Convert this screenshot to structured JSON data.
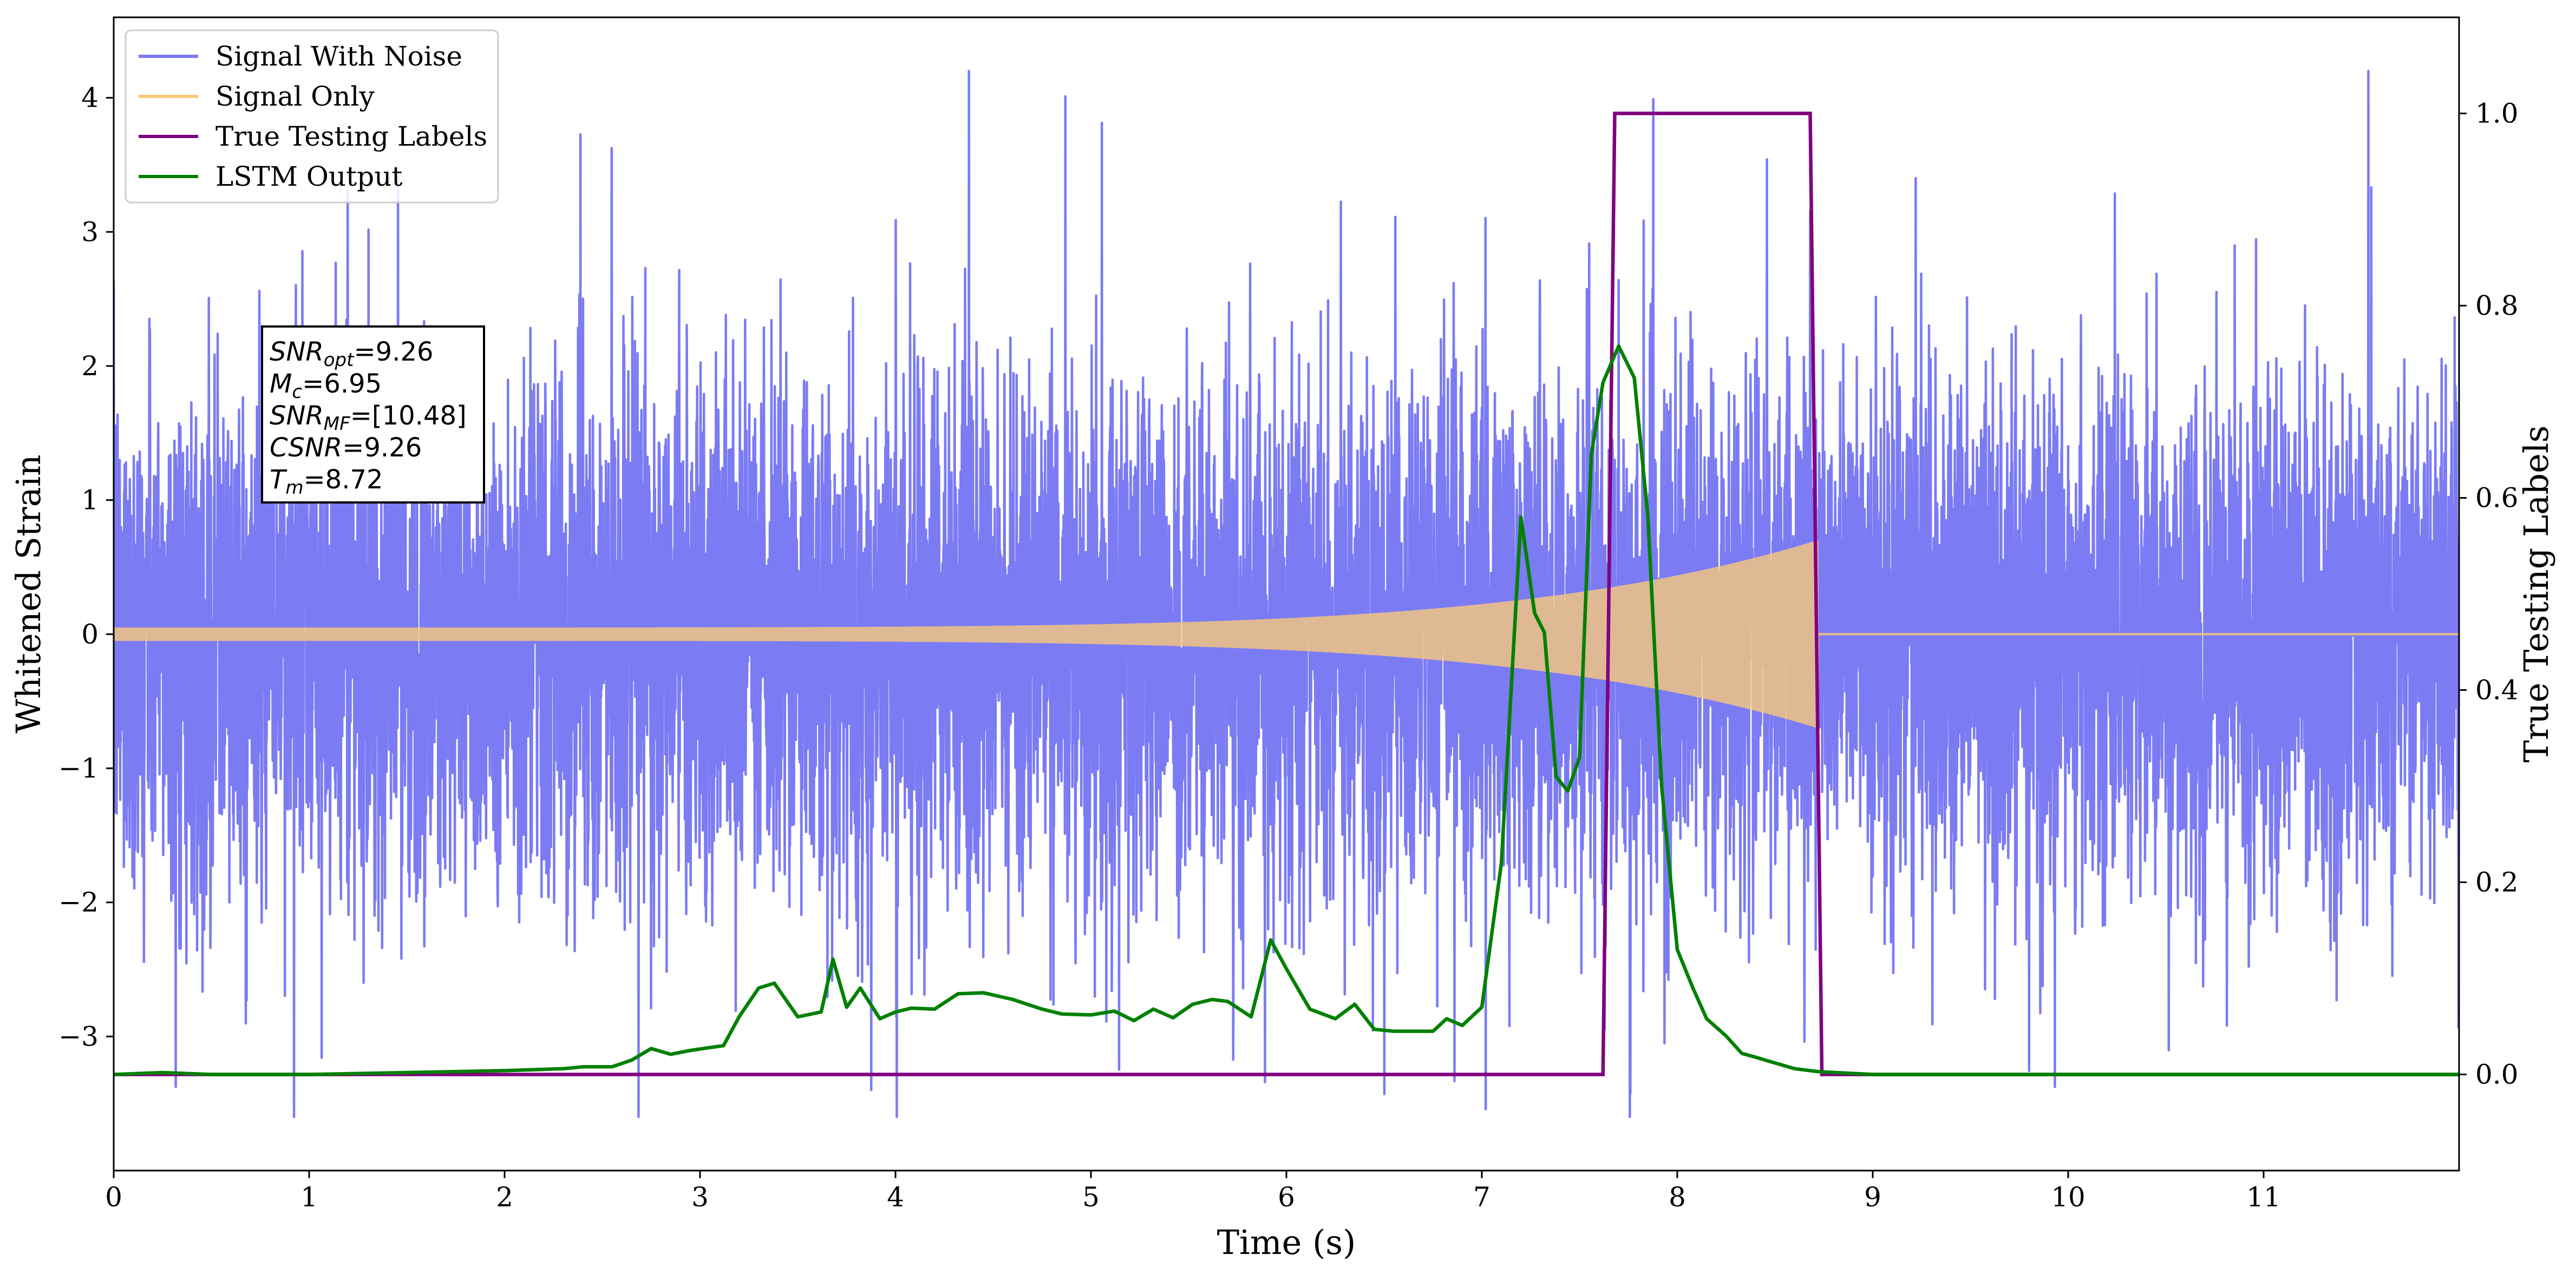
{
  "chart_data": {
    "type": "line",
    "xlabel": "Time (s)",
    "ylabel_left": "Whitened Strain",
    "ylabel_right": "True Testing Labels",
    "xlim": [
      0,
      12
    ],
    "ylim_left": [
      -4,
      4.6
    ],
    "ylim_right": [
      -0.1,
      1.1
    ],
    "xticks": [
      0,
      1,
      2,
      3,
      4,
      5,
      6,
      7,
      8,
      9,
      10,
      11
    ],
    "yticks_left": [
      -3,
      -2,
      -1,
      0,
      1,
      2,
      3,
      4
    ],
    "yticks_right": [
      0.0,
      0.2,
      0.4,
      0.6,
      0.8,
      1.0
    ],
    "grid": false,
    "legend_position": "upper-left",
    "series": [
      {
        "name": "Signal With Noise",
        "axis": "left",
        "color": "#7b7bf4",
        "kind": "noise",
        "description_values": {
          "typical_std": 0.95,
          "min": -3.6,
          "max": 4.2
        }
      },
      {
        "name": "Signal Only",
        "axis": "left",
        "color": "#f9c97a",
        "kind": "chirp",
        "start": 0,
        "merger": 8.72,
        "amp_start": 0.05,
        "amp_end": 0.7
      },
      {
        "name": "True Testing Labels",
        "axis": "right",
        "color": "#800080",
        "x": [
          0,
          7.62,
          7.68,
          8.68,
          8.74,
          12
        ],
        "y": [
          0,
          0,
          1,
          1,
          0,
          0
        ]
      },
      {
        "name": "LSTM Output",
        "axis": "right",
        "color": "#008000",
        "x": [
          0,
          0.25,
          0.5,
          1.0,
          1.5,
          2.0,
          2.3,
          2.4,
          2.55,
          2.65,
          2.75,
          2.85,
          2.95,
          3.05,
          3.12,
          3.2,
          3.3,
          3.38,
          3.5,
          3.62,
          3.68,
          3.75,
          3.82,
          3.92,
          4.0,
          4.08,
          4.2,
          4.32,
          4.45,
          4.6,
          4.75,
          4.85,
          5.0,
          5.12,
          5.22,
          5.32,
          5.42,
          5.52,
          5.62,
          5.7,
          5.82,
          5.92,
          6.0,
          6.12,
          6.25,
          6.35,
          6.45,
          6.55,
          6.75,
          6.82,
          6.9,
          7.0,
          7.1,
          7.2,
          7.27,
          7.32,
          7.38,
          7.44,
          7.5,
          7.56,
          7.62,
          7.7,
          7.78,
          7.85,
          7.92,
          8.0,
          8.08,
          8.15,
          8.25,
          8.33,
          8.4,
          8.5,
          8.6,
          8.72,
          9.0,
          10.0,
          11.0,
          12.0
        ],
        "y": [
          0.0,
          0.002,
          0.0,
          0.0,
          0.002,
          0.004,
          0.006,
          0.008,
          0.008,
          0.015,
          0.027,
          0.021,
          0.025,
          0.028,
          0.03,
          0.06,
          0.09,
          0.095,
          0.06,
          0.065,
          0.12,
          0.07,
          0.09,
          0.058,
          0.065,
          0.069,
          0.068,
          0.084,
          0.085,
          0.078,
          0.068,
          0.063,
          0.062,
          0.066,
          0.056,
          0.068,
          0.059,
          0.073,
          0.078,
          0.076,
          0.06,
          0.14,
          0.11,
          0.068,
          0.058,
          0.073,
          0.047,
          0.045,
          0.045,
          0.058,
          0.051,
          0.07,
          0.22,
          0.58,
          0.48,
          0.46,
          0.31,
          0.295,
          0.33,
          0.645,
          0.72,
          0.758,
          0.725,
          0.58,
          0.3,
          0.13,
          0.09,
          0.058,
          0.04,
          0.022,
          0.018,
          0.012,
          0.006,
          0.003,
          0.0,
          0.0,
          0.0,
          0.0
        ]
      }
    ],
    "annotation": {
      "lines": [
        {
          "base": "SNR",
          "sub": "opt",
          "value": "=9.26"
        },
        {
          "base": "M",
          "sub": "c",
          "value": "=6.95"
        },
        {
          "base": "SNR",
          "sub": "MF",
          "value": "=[10.48]"
        },
        {
          "base": "CSNR",
          "sub": "",
          "value": "=9.26"
        },
        {
          "base": "T",
          "sub": "m",
          "value": "=8.72"
        }
      ]
    }
  }
}
